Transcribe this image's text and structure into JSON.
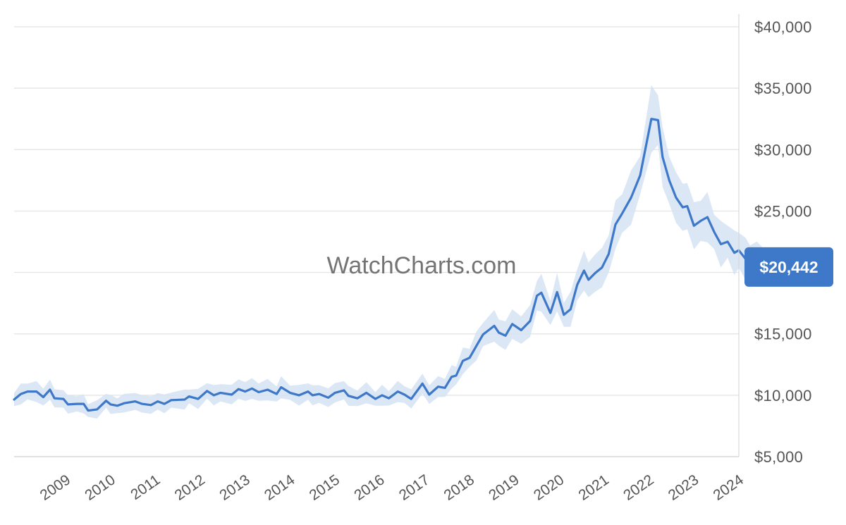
{
  "watermark": "WatchCharts.com",
  "current_price_label": "$20,442",
  "colors": {
    "line": "#3e78c8",
    "band": "#d6e3f5",
    "badge": "#3e78c8",
    "grid": "#e2e2e2"
  },
  "chart_data": {
    "type": "line",
    "title": "",
    "xlabel": "",
    "ylabel": "",
    "ylim": [
      5000,
      40000
    ],
    "xlim": [
      2008.1,
      2024.25
    ],
    "y_ticks": [
      {
        "value": 40000,
        "label": "$40,000"
      },
      {
        "value": 35000,
        "label": "$35,000"
      },
      {
        "value": 30000,
        "label": "$30,000"
      },
      {
        "value": 25000,
        "label": "$25,000"
      },
      {
        "value": 20000,
        "label": "$20,000"
      },
      {
        "value": 15000,
        "label": "$15,000"
      },
      {
        "value": 10000,
        "label": "$10,000"
      },
      {
        "value": 5000,
        "label": "$5,000"
      }
    ],
    "x_ticks": [
      "2009",
      "2010",
      "2011",
      "2012",
      "2013",
      "2014",
      "2015",
      "2016",
      "2017",
      "2018",
      "2019",
      "2020",
      "2021",
      "2022",
      "2023",
      "2024"
    ],
    "grid": true,
    "current_value": 20442,
    "series": [
      {
        "values": [
          [
            2008.1,
            9650
          ],
          [
            2008.25,
            10100
          ],
          [
            2008.4,
            10300
          ],
          [
            2008.6,
            10300
          ],
          [
            2008.75,
            9850
          ],
          [
            2008.9,
            10450
          ],
          [
            2009.0,
            9750
          ],
          [
            2009.2,
            9700
          ],
          [
            2009.3,
            9250
          ],
          [
            2009.5,
            9300
          ],
          [
            2009.65,
            9300
          ],
          [
            2009.75,
            8750
          ],
          [
            2009.95,
            8850
          ],
          [
            2010.15,
            9550
          ],
          [
            2010.25,
            9250
          ],
          [
            2010.4,
            9150
          ],
          [
            2010.55,
            9350
          ],
          [
            2010.8,
            9500
          ],
          [
            2010.95,
            9300
          ],
          [
            2011.15,
            9200
          ],
          [
            2011.3,
            9500
          ],
          [
            2011.45,
            9300
          ],
          [
            2011.6,
            9600
          ],
          [
            2011.9,
            9650
          ],
          [
            2012.0,
            9900
          ],
          [
            2012.2,
            9700
          ],
          [
            2012.4,
            10350
          ],
          [
            2012.55,
            10000
          ],
          [
            2012.7,
            10200
          ],
          [
            2012.95,
            10050
          ],
          [
            2013.1,
            10500
          ],
          [
            2013.25,
            10300
          ],
          [
            2013.4,
            10550
          ],
          [
            2013.55,
            10250
          ],
          [
            2013.75,
            10450
          ],
          [
            2013.95,
            10100
          ],
          [
            2014.05,
            10650
          ],
          [
            2014.25,
            10200
          ],
          [
            2014.45,
            10000
          ],
          [
            2014.65,
            10300
          ],
          [
            2014.75,
            10000
          ],
          [
            2014.9,
            10100
          ],
          [
            2015.1,
            9800
          ],
          [
            2015.25,
            10200
          ],
          [
            2015.45,
            10400
          ],
          [
            2015.55,
            9950
          ],
          [
            2015.75,
            9750
          ],
          [
            2015.95,
            10200
          ],
          [
            2016.15,
            9700
          ],
          [
            2016.3,
            10000
          ],
          [
            2016.45,
            9750
          ],
          [
            2016.65,
            10300
          ],
          [
            2016.8,
            10050
          ],
          [
            2016.95,
            9700
          ],
          [
            2017.2,
            10950
          ],
          [
            2017.35,
            10050
          ],
          [
            2017.55,
            10700
          ],
          [
            2017.7,
            10600
          ],
          [
            2017.85,
            11500
          ],
          [
            2017.95,
            11600
          ],
          [
            2018.1,
            12800
          ],
          [
            2018.25,
            13050
          ],
          [
            2018.4,
            14000
          ],
          [
            2018.55,
            14950
          ],
          [
            2018.8,
            15650
          ],
          [
            2018.9,
            15100
          ],
          [
            2019.05,
            14850
          ],
          [
            2019.2,
            15800
          ],
          [
            2019.4,
            15300
          ],
          [
            2019.6,
            16050
          ],
          [
            2019.75,
            18100
          ],
          [
            2019.85,
            18350
          ],
          [
            2020.05,
            16700
          ],
          [
            2020.2,
            18400
          ],
          [
            2020.35,
            16550
          ],
          [
            2020.5,
            17000
          ],
          [
            2020.65,
            19000
          ],
          [
            2020.8,
            20150
          ],
          [
            2020.9,
            19400
          ],
          [
            2021.05,
            19950
          ],
          [
            2021.2,
            20400
          ],
          [
            2021.35,
            21500
          ],
          [
            2021.5,
            23900
          ],
          [
            2021.65,
            24800
          ],
          [
            2021.85,
            26100
          ],
          [
            2022.05,
            27900
          ],
          [
            2022.3,
            32500
          ],
          [
            2022.45,
            32400
          ],
          [
            2022.55,
            29400
          ],
          [
            2022.7,
            27500
          ],
          [
            2022.85,
            26100
          ],
          [
            2023.0,
            25300
          ],
          [
            2023.1,
            25400
          ],
          [
            2023.25,
            23800
          ],
          [
            2023.4,
            24200
          ],
          [
            2023.55,
            24500
          ],
          [
            2023.7,
            23300
          ],
          [
            2023.85,
            22300
          ],
          [
            2024.0,
            22500
          ],
          [
            2024.15,
            21600
          ],
          [
            2024.25,
            21800
          ],
          [
            2024.4,
            21100
          ],
          [
            2024.5,
            20700
          ],
          [
            2024.65,
            20900
          ],
          [
            2024.78,
            20442
          ]
        ]
      }
    ]
  }
}
